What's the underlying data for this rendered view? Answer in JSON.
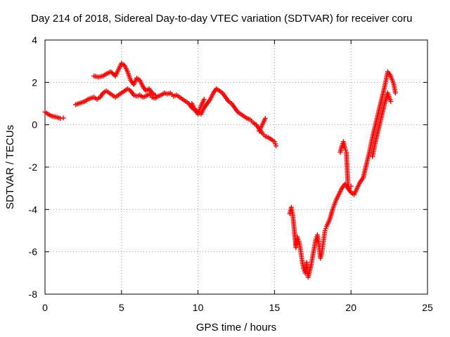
{
  "chart_data": {
    "type": "scatter",
    "title": "Day 214 of 2018, Sidereal Day-to-day VTEC variation (SDTVAR) for receiver coru",
    "xlabel": "GPS time / hours",
    "ylabel": "SDTVAR / TECUs",
    "xlim": [
      0,
      25
    ],
    "ylim": [
      -8,
      4
    ],
    "xticks": [
      0,
      5,
      10,
      15,
      20,
      25
    ],
    "yticks": [
      -8,
      -6,
      -4,
      -2,
      0,
      2,
      4
    ],
    "grid": true,
    "marker": "+",
    "color": "#ff0000",
    "segments": [
      {
        "x": [
          0.0,
          0.2,
          0.4,
          0.6,
          0.8,
          1.0,
          1.2
        ],
        "y": [
          0.6,
          0.5,
          0.42,
          0.38,
          0.35,
          0.3,
          0.32
        ]
      },
      {
        "x": [
          2.0,
          2.2,
          2.4,
          2.6,
          2.8,
          3.0,
          3.2,
          3.4,
          3.6,
          3.8,
          4.0,
          4.2,
          4.4,
          4.6,
          4.8,
          5.0,
          5.2,
          5.4,
          5.6,
          5.8,
          6.0,
          6.2,
          6.4,
          6.6,
          6.8,
          7.0,
          7.2,
          7.4,
          7.6,
          7.8,
          8.0,
          8.2,
          8.4,
          8.6,
          8.8,
          9.0,
          9.2,
          9.4,
          9.6,
          9.8,
          10.0,
          10.2,
          10.4,
          10.6,
          10.8,
          11.0,
          11.2,
          11.4,
          11.6,
          11.8,
          12.0,
          12.2,
          12.4,
          12.6,
          12.8,
          13.0,
          13.2,
          13.4,
          13.6,
          13.8,
          14.0,
          14.2,
          14.4,
          14.6,
          14.8,
          15.0,
          15.1
        ],
        "y": [
          0.95,
          1.0,
          1.05,
          1.1,
          1.2,
          1.25,
          1.3,
          1.2,
          1.3,
          1.5,
          1.6,
          1.5,
          1.4,
          1.3,
          1.4,
          1.5,
          1.6,
          1.7,
          1.6,
          1.4,
          1.35,
          1.4,
          1.3,
          1.35,
          1.45,
          1.3,
          1.25,
          1.35,
          1.4,
          1.5,
          1.45,
          1.5,
          1.35,
          1.4,
          1.3,
          1.2,
          1.1,
          1.0,
          0.8,
          0.7,
          0.6,
          0.5,
          0.8,
          1.0,
          1.2,
          1.5,
          1.7,
          1.6,
          1.5,
          1.3,
          1.1,
          1.0,
          0.8,
          0.6,
          0.5,
          0.4,
          0.3,
          0.25,
          0.1,
          0.0,
          -0.2,
          -0.4,
          -0.55,
          -0.6,
          -0.7,
          -0.8,
          -1.0
        ]
      },
      {
        "x": [
          3.2,
          3.5,
          3.8,
          4.0,
          4.3,
          4.6,
          4.8,
          5.0,
          5.2,
          5.4,
          5.6,
          5.8,
          6.0,
          6.2,
          6.4,
          6.6,
          6.8,
          7.0,
          7.2
        ],
        "y": [
          2.3,
          2.25,
          2.3,
          2.4,
          2.5,
          2.3,
          2.6,
          2.9,
          2.8,
          2.5,
          2.1,
          1.9,
          2.2,
          2.1,
          1.8,
          1.6,
          1.7,
          1.5,
          1.4
        ]
      },
      {
        "x": [
          9.6,
          9.8,
          10.0,
          10.2,
          10.4
        ],
        "y": [
          1.0,
          0.7,
          0.5,
          0.9,
          1.2
        ]
      },
      {
        "x": [
          14.0,
          14.2,
          14.4
        ],
        "y": [
          -0.3,
          0.0,
          0.3
        ]
      },
      {
        "x": [
          16.0,
          16.1,
          16.2,
          16.3,
          16.4,
          16.5,
          16.6,
          16.7,
          16.8,
          16.9,
          17.0,
          17.1,
          17.2,
          17.3,
          17.4,
          17.5,
          17.6,
          17.7,
          17.8,
          17.9,
          18.0,
          18.1,
          18.2,
          18.3,
          18.4,
          18.6,
          18.8,
          19.0,
          19.2,
          19.4,
          19.6,
          19.8,
          20.0,
          20.2,
          20.4,
          20.6,
          20.8,
          21.0,
          21.2,
          21.4,
          21.6,
          21.8,
          22.0,
          22.2,
          22.4,
          22.6,
          22.8,
          22.9
        ],
        "y": [
          -4.2,
          -3.9,
          -4.3,
          -5.0,
          -5.8,
          -5.3,
          -5.5,
          -5.9,
          -6.4,
          -6.8,
          -7.0,
          -6.5,
          -7.2,
          -6.9,
          -6.6,
          -6.2,
          -5.8,
          -5.4,
          -5.2,
          -5.6,
          -6.3,
          -6.0,
          -5.5,
          -5.0,
          -4.8,
          -4.5,
          -4.0,
          -3.6,
          -3.3,
          -3.0,
          -2.8,
          -3.0,
          -3.2,
          -3.3,
          -3.0,
          -2.7,
          -2.5,
          -1.9,
          -1.3,
          -0.6,
          0.0,
          0.6,
          1.2,
          1.8,
          2.5,
          2.3,
          1.9,
          1.5
        ]
      },
      {
        "x": [
          19.3,
          19.4,
          19.5,
          19.6,
          19.7,
          19.8,
          19.9,
          20.0
        ],
        "y": [
          -1.3,
          -1.0,
          -0.8,
          -1.1,
          -1.3,
          -2.8,
          -3.0,
          -2.9
        ]
      },
      {
        "x": [
          21.4,
          21.6,
          21.8,
          22.0,
          22.2,
          22.4,
          22.6
        ],
        "y": [
          -1.5,
          -0.8,
          -0.2,
          0.4,
          1.0,
          1.5,
          1.1
        ]
      }
    ]
  }
}
